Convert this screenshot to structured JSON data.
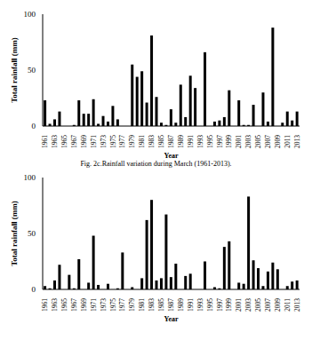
{
  "chart_data": [
    {
      "type": "bar",
      "title": "Fig. 2c.Rainfall variation during March (1961-2013).",
      "x_label": "Year",
      "y_label": "Total rainfall (mm)",
      "categories": [
        "1961",
        null,
        "1963",
        null,
        "1965",
        null,
        "1967",
        null,
        "1969",
        null,
        "1971",
        null,
        "1973",
        null,
        "1975",
        null,
        "1977",
        null,
        "1979",
        null,
        "1981",
        null,
        "1983",
        null,
        "1985",
        null,
        "1987",
        null,
        "1989",
        null,
        "1991",
        null,
        "1993",
        null,
        "1995",
        null,
        "1997",
        null,
        "1999",
        null,
        "2001",
        null,
        "2003",
        null,
        "2005",
        null,
        "2007",
        null,
        "2009",
        null,
        "2011",
        null,
        "2013"
      ],
      "values": [
        23,
        2,
        6,
        13,
        0,
        0,
        1,
        23,
        11,
        11,
        24,
        2,
        9,
        4,
        18,
        6,
        0,
        0,
        55,
        44,
        49,
        21,
        81,
        26,
        3,
        1,
        15,
        3,
        37,
        8,
        45,
        34,
        0,
        66,
        0,
        4,
        5,
        8,
        32,
        0,
        23,
        1,
        1,
        19,
        0,
        30,
        4,
        88,
        0,
        3,
        13,
        5,
        13
      ],
      "color": "#000000",
      "ylim": [
        0,
        100
      ],
      "yticks": [
        0,
        50,
        100
      ],
      "grid": false
    },
    {
      "type": "bar",
      "x_label": "Year",
      "y_label": "Total rainfall (mm)",
      "categories": [
        "1961",
        null,
        "1963",
        null,
        "1965",
        null,
        "1967",
        null,
        "1969",
        null,
        "1971",
        null,
        "1973",
        null,
        "1975",
        null,
        "1977",
        null,
        "1979",
        null,
        "1981",
        null,
        "1983",
        null,
        "1985",
        null,
        "1987",
        null,
        "1989",
        null,
        "1991",
        null,
        "1993",
        null,
        "1995",
        null,
        "1997",
        null,
        "1999",
        null,
        "2001",
        null,
        "2003",
        null,
        "2005",
        null,
        "2007",
        null,
        "2009",
        null,
        "2011",
        null,
        "2013"
      ],
      "values": [
        3,
        1,
        8,
        22,
        0,
        13,
        1,
        27,
        0,
        6,
        48,
        4,
        0,
        5,
        0,
        1,
        33,
        0,
        2,
        0,
        10,
        62,
        80,
        8,
        10,
        67,
        11,
        23,
        0,
        12,
        14,
        0,
        0,
        25,
        0,
        2,
        1,
        38,
        43,
        0,
        6,
        5,
        83,
        26,
        19,
        3,
        16,
        24,
        18,
        0,
        3,
        7,
        8
      ],
      "color": "#000000",
      "ylim": [
        0,
        100
      ],
      "yticks": [
        0,
        50,
        100
      ],
      "grid": false
    }
  ]
}
